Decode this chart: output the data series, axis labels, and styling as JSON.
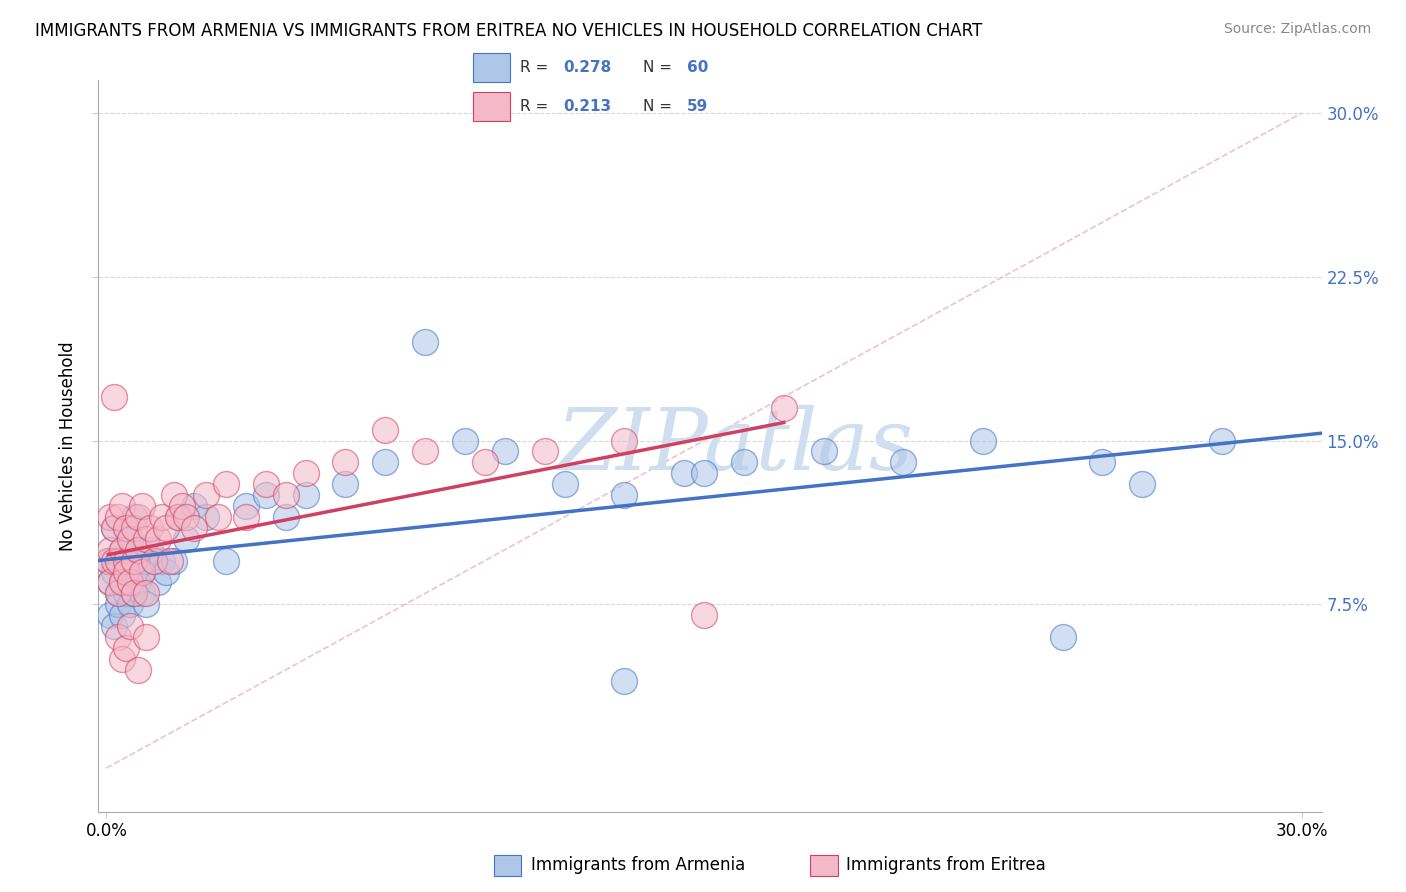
{
  "title": "IMMIGRANTS FROM ARMENIA VS IMMIGRANTS FROM ERITREA NO VEHICLES IN HOUSEHOLD CORRELATION CHART",
  "source": "Source: ZipAtlas.com",
  "ylabel": "No Vehicles in Household",
  "ytick_vals": [
    0.075,
    0.15,
    0.225,
    0.3
  ],
  "ytick_labels": [
    "7.5%",
    "15.0%",
    "22.5%",
    "30.0%"
  ],
  "xlim": [
    -0.002,
    0.305
  ],
  "ylim": [
    -0.02,
    0.315
  ],
  "legend_label1": "Immigrants from Armenia",
  "legend_label2": "Immigrants from Eritrea",
  "legend_R1": "0.278",
  "legend_N1": "60",
  "legend_R2": "0.213",
  "legend_N2": "59",
  "color_armenia": "#aec6e8",
  "color_eritrea": "#f4b8c8",
  "line_color_armenia": "#4472c4",
  "line_color_eritrea": "#d04060",
  "diag_color": "#e8b4bc",
  "watermark_color": "#d0dff0",
  "armenia_x": [
    0.0005,
    0.001,
    0.001,
    0.002,
    0.002,
    0.002,
    0.003,
    0.003,
    0.003,
    0.004,
    0.004,
    0.004,
    0.005,
    0.005,
    0.005,
    0.006,
    0.006,
    0.006,
    0.007,
    0.007,
    0.007,
    0.008,
    0.008,
    0.009,
    0.009,
    0.01,
    0.01,
    0.011,
    0.012,
    0.013,
    0.014,
    0.015,
    0.017,
    0.018,
    0.02,
    0.022,
    0.025,
    0.03,
    0.035,
    0.04,
    0.045,
    0.05,
    0.06,
    0.07,
    0.08,
    0.09,
    0.1,
    0.115,
    0.13,
    0.145,
    0.16,
    0.18,
    0.2,
    0.22,
    0.24,
    0.26,
    0.13,
    0.15,
    0.25,
    0.28
  ],
  "armenia_y": [
    0.095,
    0.07,
    0.085,
    0.065,
    0.09,
    0.11,
    0.08,
    0.095,
    0.075,
    0.1,
    0.085,
    0.07,
    0.095,
    0.08,
    0.11,
    0.09,
    0.075,
    0.105,
    0.095,
    0.08,
    0.115,
    0.085,
    0.1,
    0.09,
    0.08,
    0.095,
    0.075,
    0.1,
    0.095,
    0.085,
    0.095,
    0.09,
    0.095,
    0.115,
    0.105,
    0.12,
    0.115,
    0.095,
    0.12,
    0.125,
    0.115,
    0.125,
    0.13,
    0.14,
    0.195,
    0.15,
    0.145,
    0.13,
    0.125,
    0.135,
    0.14,
    0.145,
    0.14,
    0.15,
    0.06,
    0.13,
    0.04,
    0.135,
    0.14,
    0.15
  ],
  "eritrea_x": [
    0.0005,
    0.001,
    0.001,
    0.001,
    0.002,
    0.002,
    0.002,
    0.003,
    0.003,
    0.003,
    0.004,
    0.004,
    0.004,
    0.005,
    0.005,
    0.005,
    0.006,
    0.006,
    0.007,
    0.007,
    0.007,
    0.008,
    0.008,
    0.009,
    0.009,
    0.01,
    0.01,
    0.011,
    0.012,
    0.013,
    0.014,
    0.015,
    0.016,
    0.017,
    0.018,
    0.019,
    0.02,
    0.022,
    0.025,
    0.028,
    0.03,
    0.035,
    0.04,
    0.045,
    0.05,
    0.06,
    0.07,
    0.08,
    0.095,
    0.11,
    0.13,
    0.15,
    0.17,
    0.003,
    0.004,
    0.005,
    0.006,
    0.008,
    0.01
  ],
  "eritrea_y": [
    0.095,
    0.085,
    0.1,
    0.115,
    0.095,
    0.11,
    0.17,
    0.08,
    0.095,
    0.115,
    0.1,
    0.085,
    0.12,
    0.095,
    0.11,
    0.09,
    0.105,
    0.085,
    0.11,
    0.095,
    0.08,
    0.115,
    0.1,
    0.09,
    0.12,
    0.105,
    0.08,
    0.11,
    0.095,
    0.105,
    0.115,
    0.11,
    0.095,
    0.125,
    0.115,
    0.12,
    0.115,
    0.11,
    0.125,
    0.115,
    0.13,
    0.115,
    0.13,
    0.125,
    0.135,
    0.14,
    0.155,
    0.145,
    0.14,
    0.145,
    0.15,
    0.07,
    0.165,
    0.06,
    0.05,
    0.055,
    0.065,
    0.045,
    0.06
  ],
  "grid_color": "#d0d0d0"
}
